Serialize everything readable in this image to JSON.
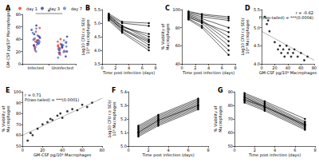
{
  "chart_data": [
    {
      "type": "scatter",
      "title": "A",
      "categories": [
        "Infected",
        "Uninfected"
      ],
      "ylabel": "GM-CSF pg/10⁶ Macrophages",
      "ylim": [
        0,
        80
      ],
      "yticks": [
        0,
        20,
        40,
        60,
        80
      ],
      "legend": "top",
      "marker": "circle",
      "annotations": [
        "*"
      ],
      "series": [
        {
          "name": "day 1",
          "color": "#e8402a",
          "values": [
            [
              22,
              28,
              33,
              36,
              40,
              45,
              52,
              58,
              30,
              38
            ],
            [
              15,
              20,
              24,
              28,
              32,
              36,
              40,
              18,
              26,
              30
            ]
          ]
        },
        {
          "name": "day 3",
          "color": "#2b3aa8",
          "values": [
            [
              25,
              30,
              35,
              42,
              48,
              55,
              62,
              38,
              44,
              33
            ],
            [
              12,
              18,
              22,
              27,
              31,
              35,
              44,
              25,
              20,
              29
            ]
          ]
        },
        {
          "name": "day 7",
          "color": "#5a78d0",
          "values": [
            [
              20,
              27,
              34,
              39,
              46,
              50,
              57,
              41,
              36,
              31
            ],
            [
              10,
              16,
              21,
              26,
              30,
              34,
              38,
              23,
              28,
              19
            ]
          ]
        }
      ]
    },
    {
      "type": "line",
      "title": "B",
      "x": [
        1,
        3,
        7
      ],
      "xlim": [
        0,
        8
      ],
      "xticks": [
        0,
        2,
        4,
        6,
        8
      ],
      "xlabel": "Time post infection (days)",
      "ylabel": "Log10 CFU (± SD)/\n10⁶ Macrophages",
      "ylim": [
        3.5,
        5.5
      ],
      "yticks": [
        3.5,
        {
          "value": 4,
          "label": "4.0"
        },
        4.5,
        {
          "value": 5,
          "label": "5.0"
        },
        5.5
      ],
      "color": "#000000",
      "marker": "circle",
      "series": [
        {
          "values": [
            5.3,
            4.9,
            4.4
          ]
        },
        {
          "values": [
            5.2,
            4.8,
            4.2
          ]
        },
        {
          "values": [
            5.25,
            4.85,
            4.6
          ]
        },
        {
          "values": [
            5.3,
            5.0,
            4.9
          ]
        },
        {
          "values": [
            5.15,
            4.7,
            4.1
          ]
        },
        {
          "values": [
            5.2,
            4.75,
            4.3
          ]
        },
        {
          "values": [
            5.35,
            5.05,
            5.0
          ]
        },
        {
          "values": [
            5.1,
            4.65,
            4.0
          ]
        },
        {
          "values": [
            5.25,
            4.9,
            4.5
          ]
        },
        {
          "values": [
            5.2,
            4.8,
            4.35
          ]
        }
      ]
    },
    {
      "type": "line",
      "title": "C",
      "x": [
        1,
        3,
        7
      ],
      "xlim": [
        0,
        8
      ],
      "xticks": [
        0,
        2,
        4,
        6,
        8
      ],
      "xlabel": "Time post infection (days)",
      "ylabel": "% Viability of\nMacrophages",
      "ylim": [
        40,
        100
      ],
      "yticks": [
        40,
        60,
        80,
        100
      ],
      "color": "#000000",
      "marker": "circle",
      "series": [
        {
          "values": [
            96,
            92,
            88
          ]
        },
        {
          "values": [
            94,
            88,
            70
          ]
        },
        {
          "values": [
            92,
            85,
            60
          ]
        },
        {
          "values": [
            97,
            94,
            90
          ]
        },
        {
          "values": [
            90,
            82,
            55
          ]
        },
        {
          "values": [
            95,
            90,
            80
          ]
        },
        {
          "values": [
            93,
            87,
            65
          ]
        },
        {
          "values": [
            91,
            86,
            75
          ]
        },
        {
          "values": [
            98,
            95,
            92
          ]
        },
        {
          "values": [
            89,
            80,
            50
          ]
        }
      ]
    },
    {
      "type": "scatter",
      "title": "D",
      "xlim": [
        0,
        80
      ],
      "xticks": [
        0,
        20,
        40,
        60,
        80
      ],
      "xlabel": "GM-CSF pg/10⁶ Macrophages",
      "ylabel": "Log10 CFU (± SD)/\n10⁶ Macrophages",
      "ylim": [
        4,
        5.5
      ],
      "yticks": [
        {
          "value": 4,
          "label": "4.0"
        },
        4.5,
        {
          "value": 5,
          "label": "5.0"
        },
        5.5
      ],
      "color": "#000000",
      "annotations": [
        "r = -0.62",
        "P(two-tailed) = ***(0.0004)"
      ],
      "series": [
        {
          "type": "scatter",
          "marker": "circle",
          "x": [
            5,
            8,
            10,
            12,
            20,
            25,
            28,
            30,
            33,
            35,
            38,
            40,
            42,
            45,
            48,
            50,
            55,
            60,
            65,
            70
          ],
          "values": [
            5.3,
            5.1,
            5.2,
            4.9,
            4.6,
            4.4,
            4.5,
            4.3,
            4.4,
            4.2,
            4.5,
            4.3,
            4.4,
            4.2,
            4.3,
            4.4,
            4.2,
            4.3,
            4.1,
            4.2
          ]
        },
        {
          "type": "line",
          "line_style": "dotted",
          "x": [
            0,
            80
          ],
          "values": [
            4.9,
            4.1
          ]
        }
      ]
    },
    {
      "type": "scatter",
      "title": "E",
      "xlim": [
        0,
        80
      ],
      "xticks": [
        0,
        20,
        40,
        60,
        80
      ],
      "xlabel": "GM-CSF pg/10⁶ Macrophages",
      "ylabel": "% Viability of\nMacrophages",
      "ylim": [
        50,
        100
      ],
      "yticks": [
        50,
        60,
        70,
        80,
        90,
        100
      ],
      "color": "#000000",
      "annotations": [
        "r = 0.71",
        "P(two-tailed) = ***(0.0001)"
      ],
      "series": [
        {
          "type": "scatter",
          "marker": "circle",
          "x": [
            5,
            8,
            10,
            15,
            20,
            25,
            28,
            30,
            35,
            38,
            40,
            45,
            50,
            55,
            60,
            65,
            70
          ],
          "values": [
            55,
            62,
            60,
            66,
            70,
            72,
            75,
            74,
            78,
            80,
            76,
            82,
            84,
            83,
            88,
            86,
            90
          ]
        },
        {
          "type": "line",
          "line_style": "dotted",
          "x": [
            0,
            80
          ],
          "values": [
            60,
            94
          ]
        }
      ]
    },
    {
      "type": "line",
      "title": "F",
      "x": [
        1,
        3,
        7
      ],
      "xlim": [
        0,
        8
      ],
      "xticks": [
        0,
        2,
        4,
        6,
        8
      ],
      "xlabel": "Time post infection (days)",
      "ylabel": "Log10 CFU (± SD)/\n10⁶ Macrophages",
      "ylim": [
        5,
        5.4
      ],
      "yticks": [
        {
          "value": 5,
          "label": "5.0"
        },
        5.1,
        5.2,
        5.3,
        5.4
      ],
      "color": "#000000",
      "marker": "circle",
      "series": [
        {
          "values": [
            5.1,
            5.18,
            5.3
          ]
        },
        {
          "values": [
            5.12,
            5.2,
            5.32
          ]
        },
        {
          "values": [
            5.08,
            5.16,
            5.28
          ]
        },
        {
          "values": [
            5.14,
            5.22,
            5.34
          ]
        },
        {
          "values": [
            5.11,
            5.19,
            5.31
          ]
        },
        {
          "values": [
            5.09,
            5.17,
            5.29
          ]
        },
        {
          "values": [
            5.13,
            5.21,
            5.33
          ]
        },
        {
          "values": [
            5.1,
            5.19,
            5.3
          ]
        },
        {
          "values": [
            5.15,
            5.23,
            5.35
          ]
        },
        {
          "values": [
            5.07,
            5.15,
            5.27
          ]
        }
      ]
    },
    {
      "type": "line",
      "title": "G",
      "x": [
        1,
        3,
        7
      ],
      "xlim": [
        0,
        8
      ],
      "xticks": [
        0,
        2,
        4,
        6,
        8
      ],
      "xlabel": "Time post infection (days)",
      "ylabel": "% Viability of\nMacrophages",
      "ylim": [
        50,
        90
      ],
      "yticks": [
        50,
        60,
        70,
        80,
        90
      ],
      "color": "#000000",
      "marker": "circle",
      "series": [
        {
          "values": [
            86,
            80,
            66
          ]
        },
        {
          "values": [
            84,
            78,
            64
          ]
        },
        {
          "values": [
            88,
            82,
            68
          ]
        },
        {
          "values": [
            85,
            79,
            65
          ]
        },
        {
          "values": [
            87,
            81,
            67
          ]
        },
        {
          "values": [
            83,
            77,
            63
          ]
        },
        {
          "values": [
            86,
            79,
            66
          ]
        },
        {
          "values": [
            84,
            79,
            65
          ]
        },
        {
          "values": [
            89,
            83,
            70
          ]
        },
        {
          "values": [
            82,
            76,
            62
          ]
        }
      ]
    }
  ]
}
